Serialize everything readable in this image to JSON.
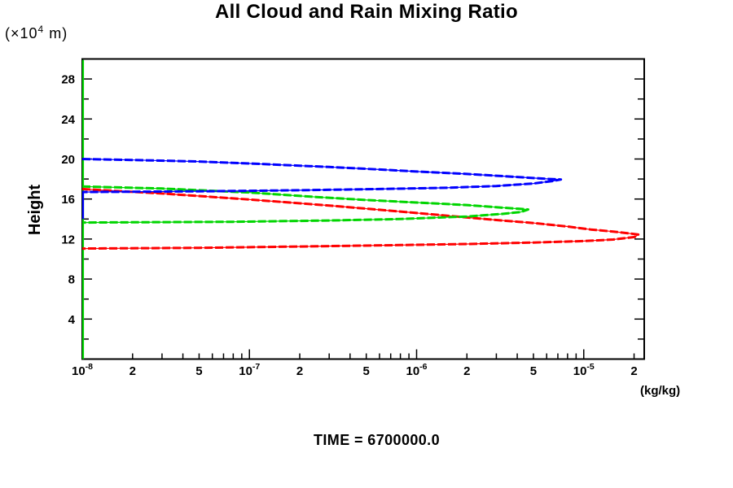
{
  "chart_data": {
    "type": "line",
    "title": "All Cloud and Rain Mixing Ratio",
    "xlabel": "(kg/kg)",
    "ylabel": "Height",
    "y_unit_parts": {
      "prefix": "(×10",
      "exponent": "4",
      "suffix": "  m)"
    },
    "time_label": "TIME = 6700000.0",
    "x_scale": "log",
    "xlim": [
      1e-08,
      2.3e-05
    ],
    "ylim": [
      0,
      30
    ],
    "grid": false,
    "legend": "none",
    "x_tick_labels": [
      {
        "t": "10",
        "s": "-8",
        "v": 1e-08
      },
      {
        "t": "2",
        "v": 2e-08
      },
      {
        "t": "5",
        "v": 5e-08
      },
      {
        "t": "10",
        "s": "-7",
        "v": 1e-07
      },
      {
        "t": "2",
        "v": 2e-07
      },
      {
        "t": "5",
        "v": 5e-07
      },
      {
        "t": "10",
        "s": "-6",
        "v": 1e-06
      },
      {
        "t": "2",
        "v": 2e-06
      },
      {
        "t": "5",
        "v": 5e-06
      },
      {
        "t": "10",
        "s": "-5",
        "v": 1e-05
      },
      {
        "t": "2",
        "v": 2e-05
      }
    ],
    "x_major_ticks": [
      1e-07,
      1e-06,
      1e-05
    ],
    "y_tick_labels": [
      4,
      8,
      12,
      16,
      20,
      24,
      28
    ],
    "y_minor_step": 2,
    "y_label_step": 4,
    "series": [
      {
        "name": "red-profile",
        "color": "#ff0000",
        "points": [
          [
            1e-08,
            17.0
          ],
          [
            3e-08,
            16.55
          ],
          [
            1e-07,
            15.95
          ],
          [
            3e-07,
            15.35
          ],
          [
            8e-07,
            14.75
          ],
          [
            1.6e-06,
            14.3
          ],
          [
            3e-06,
            13.9
          ],
          [
            5e-06,
            13.6
          ],
          [
            8e-06,
            13.25
          ],
          [
            1.1e-05,
            12.95
          ],
          [
            1.5e-05,
            12.75
          ],
          [
            1.9e-05,
            12.55
          ],
          [
            2.12e-05,
            12.45
          ],
          [
            2.02e-05,
            12.2
          ],
          [
            1.5e-05,
            11.95
          ],
          [
            1e-05,
            11.8
          ],
          [
            5e-06,
            11.65
          ],
          [
            2e-06,
            11.5
          ],
          [
            8e-07,
            11.4
          ],
          [
            2e-07,
            11.25
          ],
          [
            5e-08,
            11.12
          ],
          [
            1e-08,
            11.05
          ]
        ]
      },
      {
        "name": "green-profile",
        "color": "#00d500",
        "points": [
          [
            1e-08,
            17.25
          ],
          [
            3e-08,
            17.05
          ],
          [
            1e-07,
            16.65
          ],
          [
            2.5e-07,
            16.2
          ],
          [
            5e-07,
            15.9
          ],
          [
            1e-06,
            15.65
          ],
          [
            2e-06,
            15.4
          ],
          [
            3.2e-06,
            15.15
          ],
          [
            4.3e-06,
            15.0
          ],
          [
            4.65e-06,
            14.95
          ],
          [
            4.2e-06,
            14.7
          ],
          [
            3.2e-06,
            14.5
          ],
          [
            2e-06,
            14.25
          ],
          [
            8e-07,
            14.0
          ],
          [
            3e-07,
            13.85
          ],
          [
            8e-08,
            13.72
          ],
          [
            1e-08,
            13.65
          ]
        ]
      },
      {
        "name": "blue-profile",
        "color": "#0000ff",
        "points": [
          [
            1e-08,
            20.0
          ],
          [
            2e-08,
            19.9
          ],
          [
            5e-08,
            19.75
          ],
          [
            1e-07,
            19.55
          ],
          [
            3e-07,
            19.2
          ],
          [
            6e-07,
            18.95
          ],
          [
            1e-06,
            18.75
          ],
          [
            2e-06,
            18.5
          ],
          [
            4e-06,
            18.2
          ],
          [
            6e-06,
            18.02
          ],
          [
            7.3e-06,
            17.95
          ],
          [
            6.5e-06,
            17.8
          ],
          [
            5e-06,
            17.55
          ],
          [
            3e-06,
            17.3
          ],
          [
            1.5e-06,
            17.12
          ],
          [
            6e-07,
            17.0
          ],
          [
            2e-07,
            16.88
          ],
          [
            6e-08,
            16.78
          ],
          [
            1e-08,
            16.7
          ]
        ]
      }
    ],
    "axis_overlays": [
      {
        "name": "green-axis-minimum-line",
        "color": "#00d500",
        "x": 1e-08,
        "h_from": 0,
        "h_to": 29.9,
        "layer": "under"
      },
      {
        "name": "blue-axis-minimum-line",
        "color": "#0000ff",
        "x": 1e-08,
        "h_from": 14.0,
        "h_to": 16.7,
        "layer": "over"
      }
    ]
  }
}
